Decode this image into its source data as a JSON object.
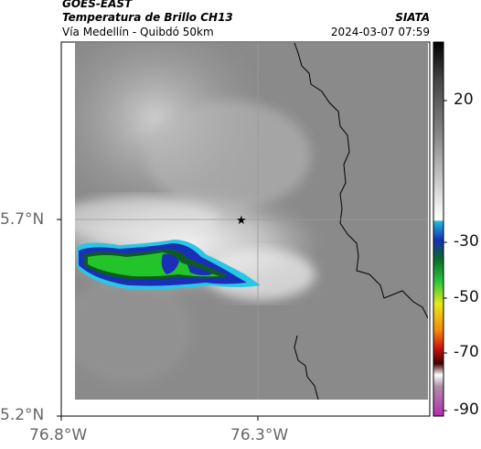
{
  "header": {
    "satellite": "GOES-EAST",
    "product": "Temperatura de Brillo CH13",
    "route": "Vía Medellín - Quibdó 50km",
    "org": "SIATA",
    "datetime": "2024-03-07 07:59"
  },
  "axes": {
    "lat_ticks": [
      "5.7°N",
      "5.2°N"
    ],
    "lon_ticks": [
      "76.8°W",
      "76.3°W"
    ]
  },
  "colorbar": {
    "labels": [
      "20",
      "-30",
      "-50",
      "-70",
      "-90"
    ]
  },
  "colors": {
    "background_gray": "#8a8a8a",
    "cloud_green": "#22c42a",
    "cloud_blue": "#1a2fb8",
    "cloud_cyan": "#29c7e6"
  },
  "map": {
    "marker": "star-marker"
  }
}
